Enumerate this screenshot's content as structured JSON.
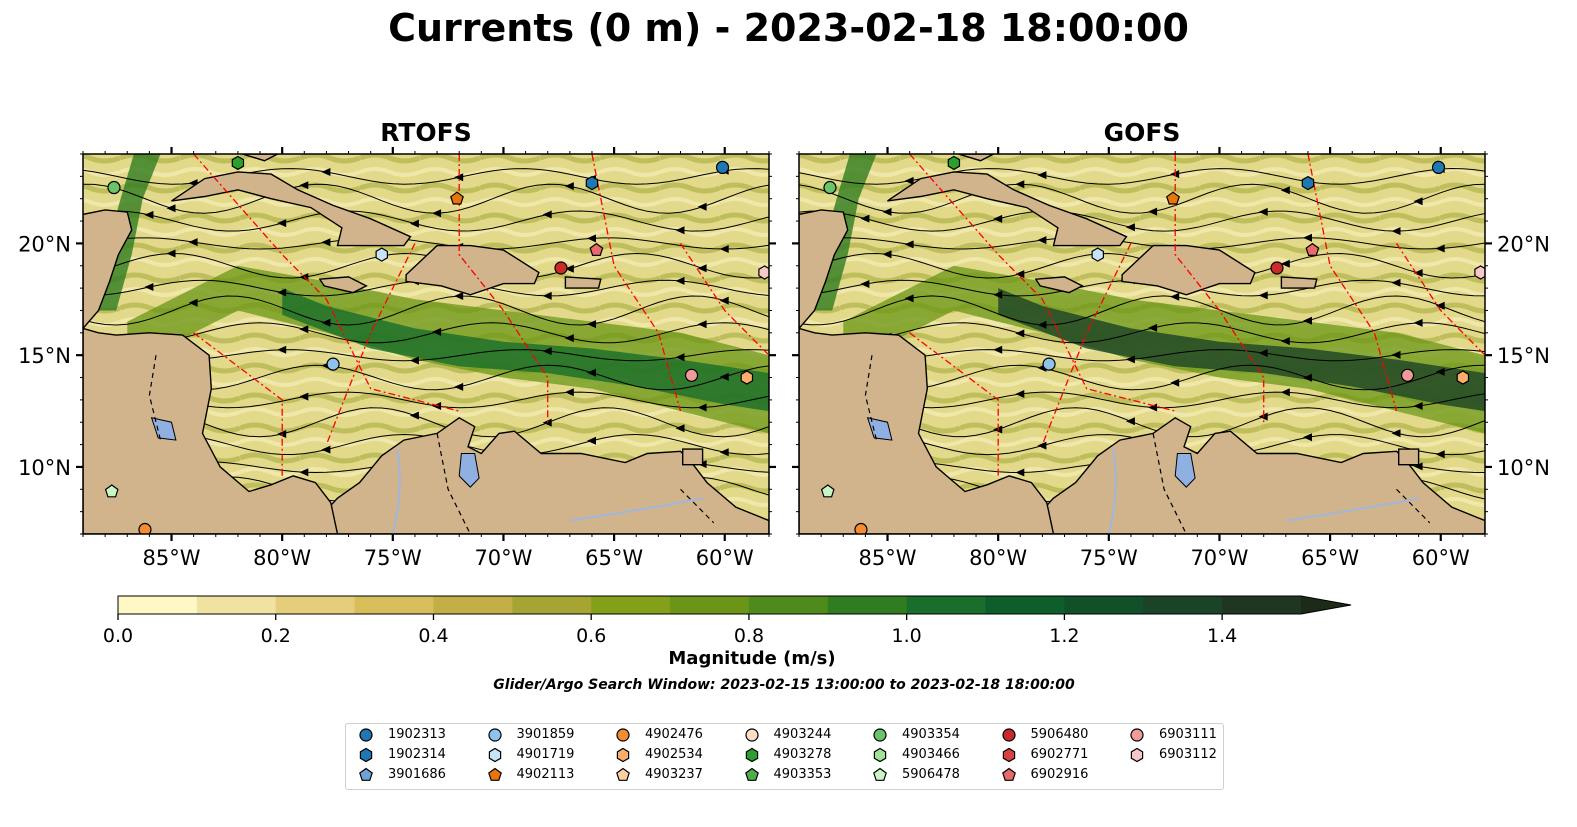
{
  "title": "Currents (0 m) - 2023-02-18 18:00:00",
  "panels": [
    {
      "title": "RTOFS",
      "id": "rtofs"
    },
    {
      "title": "GOFS",
      "id": "gofs"
    }
  ],
  "map": {
    "lon_range": [
      -89,
      -58
    ],
    "lat_range": [
      7,
      24
    ],
    "lon_ticks": [
      "85°W",
      "80°W",
      "75°W",
      "70°W",
      "65°W",
      "60°W"
    ],
    "lon_tick_values": [
      -85,
      -80,
      -75,
      -70,
      -65,
      -60
    ],
    "lat_ticks": [
      "10°N",
      "15°N",
      "20°N"
    ],
    "lat_tick_values": [
      10,
      15,
      20
    ],
    "land_color": "#d2b48c",
    "eez_line_color": "#ff0000",
    "river_color": "#9fb7d9",
    "lake_color": "#8fb0e0"
  },
  "colorbar": {
    "label": "Magnitude (m/s)",
    "min": 0.0,
    "max": 1.5,
    "extend": "max",
    "ticks": [
      "0.0",
      "0.2",
      "0.4",
      "0.6",
      "0.8",
      "1.0",
      "1.2",
      "1.4"
    ],
    "colors": [
      "#fef8c4",
      "#f0e2a0",
      "#e4cd7b",
      "#d8bd5b",
      "#c4ae46",
      "#a6a432",
      "#84a01a",
      "#6a9516",
      "#4e8a1c",
      "#2f7c21",
      "#186e2a",
      "#0e5e2c",
      "#12502a",
      "#1b4327",
      "#1f3722",
      "#1c2a18"
    ]
  },
  "search_window": "Glider/Argo Search Window: 2023-02-15 13:00:00 to 2023-02-18 18:00:00",
  "floats": [
    {
      "id": "1902313",
      "color": "#1f77b4",
      "marker": "circle",
      "lon": -60.1,
      "lat": 23.4
    },
    {
      "id": "1902314",
      "color": "#1f77b4",
      "marker": "hexagon",
      "lon": -66.0,
      "lat": 22.7
    },
    {
      "id": "3901686",
      "color": "#6fa2d7",
      "marker": "pentagon"
    },
    {
      "id": "3901859",
      "color": "#8ec3ee",
      "marker": "circle",
      "lon": -77.7,
      "lat": 14.6
    },
    {
      "id": "4901719",
      "color": "#c7e3f8",
      "marker": "hexagon",
      "lon": -75.5,
      "lat": 19.5
    },
    {
      "id": "4902113",
      "color": "#e8740c",
      "marker": "pentagon",
      "lon": -72.1,
      "lat": 22.0
    },
    {
      "id": "4902476",
      "color": "#f58c34",
      "marker": "circle",
      "lon": -86.2,
      "lat": 7.2
    },
    {
      "id": "4902534",
      "color": "#fdae6b",
      "marker": "hexagon",
      "lon": -59.0,
      "lat": 14.0
    },
    {
      "id": "4903237",
      "color": "#fdd0a2",
      "marker": "pentagon"
    },
    {
      "id": "4903244",
      "color": "#fde0c5",
      "marker": "circle"
    },
    {
      "id": "4903278",
      "color": "#2ca02c",
      "marker": "hexagon",
      "lon": -82.0,
      "lat": 23.6
    },
    {
      "id": "4903353",
      "color": "#4daf4a",
      "marker": "pentagon"
    },
    {
      "id": "4903354",
      "color": "#6cc46a",
      "marker": "circle",
      "lon": -87.6,
      "lat": 22.5
    },
    {
      "id": "4903466",
      "color": "#9ee59a",
      "marker": "hexagon"
    },
    {
      "id": "5906478",
      "color": "#c9f5c4",
      "marker": "pentagon",
      "lon": -87.7,
      "lat": 8.9
    },
    {
      "id": "5906480",
      "color": "#c92a2a",
      "marker": "circle",
      "lon": -67.4,
      "lat": 18.9
    },
    {
      "id": "6902771",
      "color": "#d94040",
      "marker": "hexagon"
    },
    {
      "id": "6902916",
      "color": "#e86a6a",
      "marker": "pentagon",
      "lon": -65.8,
      "lat": 19.7
    },
    {
      "id": "6903111",
      "color": "#f29a9a",
      "marker": "circle",
      "lon": -61.5,
      "lat": 14.1
    },
    {
      "id": "6903112",
      "color": "#f8c8c8",
      "marker": "hexagon",
      "lon": -58.2,
      "lat": 18.7
    }
  ]
}
